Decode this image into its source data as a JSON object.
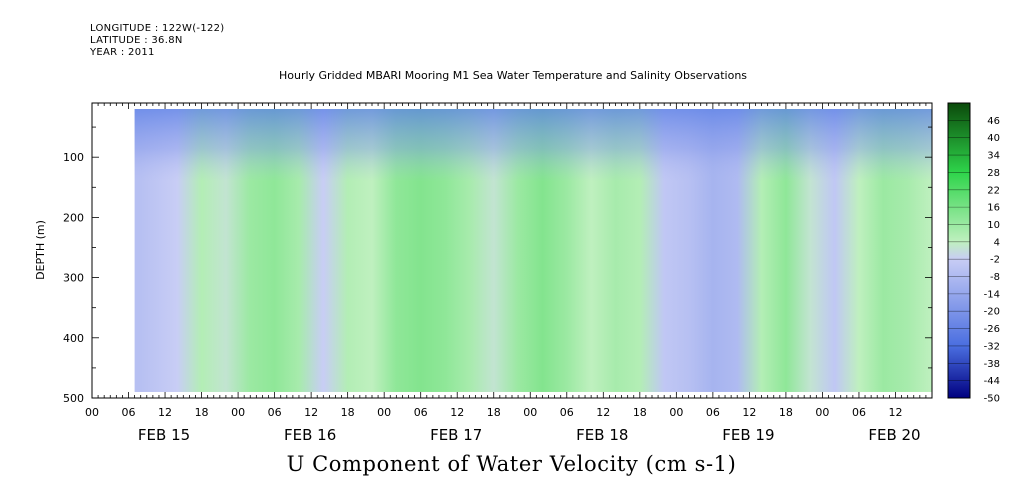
{
  "header": {
    "longitude": "LONGITUDE : 122W(-122)",
    "latitude": "LATITUDE : 36.8N",
    "year": "YEAR : 2011"
  },
  "title": "Hourly Gridded MBARI Mooring M1 Sea Water Temperature and Salinity Observations",
  "footer_title": "U Component of Water Velocity (cm s-1)",
  "chart_data": {
    "type": "heatmap",
    "title": "Hourly Gridded MBARI Mooring M1 Sea Water Temperature and Salinity Observations",
    "xlabel": "",
    "ylabel": "DEPTH (m)",
    "colorbar_label": "U Component of Water Velocity (cm s-1)",
    "x_range_hours_since_feb15_00": [
      0,
      138
    ],
    "x_ticks_hour_labels": [
      "00",
      "06",
      "12",
      "18",
      "00",
      "06",
      "12",
      "18",
      "00",
      "06",
      "12",
      "18",
      "00",
      "06",
      "12",
      "18",
      "00",
      "06",
      "12",
      "18",
      "00",
      "06",
      "12"
    ],
    "x_date_labels": [
      "FEB 15",
      "FEB 16",
      "FEB 17",
      "FEB 18",
      "FEB 19",
      "FEB 20"
    ],
    "y_range": [
      500,
      10
    ],
    "y_ticks": [
      100,
      200,
      300,
      400,
      500
    ],
    "colorbar_ticks": [
      46,
      40,
      34,
      28,
      22,
      16,
      10,
      4,
      -2,
      -8,
      -14,
      -20,
      -26,
      -32,
      -38,
      -44,
      -50
    ],
    "colorbar_range": [
      -50,
      52
    ],
    "data_x_range": [
      7,
      138
    ],
    "data_depth_range": [
      20,
      490
    ],
    "column_mean_velocity": [
      {
        "x": 8,
        "v": -6
      },
      {
        "x": 14,
        "v": -2
      },
      {
        "x": 18,
        "v": 6
      },
      {
        "x": 22,
        "v": 2
      },
      {
        "x": 26,
        "v": 10
      },
      {
        "x": 30,
        "v": 12
      },
      {
        "x": 34,
        "v": 8
      },
      {
        "x": 38,
        "v": -2
      },
      {
        "x": 42,
        "v": 6
      },
      {
        "x": 46,
        "v": 4
      },
      {
        "x": 50,
        "v": 12
      },
      {
        "x": 54,
        "v": 14
      },
      {
        "x": 58,
        "v": 12
      },
      {
        "x": 62,
        "v": 8
      },
      {
        "x": 66,
        "v": 2
      },
      {
        "x": 70,
        "v": 10
      },
      {
        "x": 74,
        "v": 14
      },
      {
        "x": 78,
        "v": 10
      },
      {
        "x": 82,
        "v": 4
      },
      {
        "x": 86,
        "v": 8
      },
      {
        "x": 90,
        "v": 6
      },
      {
        "x": 94,
        "v": -4
      },
      {
        "x": 98,
        "v": -6
      },
      {
        "x": 102,
        "v": -10
      },
      {
        "x": 106,
        "v": -8
      },
      {
        "x": 110,
        "v": 6
      },
      {
        "x": 114,
        "v": 12
      },
      {
        "x": 118,
        "v": 2
      },
      {
        "x": 122,
        "v": -4
      },
      {
        "x": 126,
        "v": 4
      },
      {
        "x": 130,
        "v": 10
      },
      {
        "x": 134,
        "v": 8
      },
      {
        "x": 138,
        "v": 4
      }
    ]
  },
  "colors": {
    "palette_low": "#000080",
    "palette_mid_blue": "#4a6ee0",
    "palette_pale_blue": "#c8cdf5",
    "palette_pale_green": "#bff0bf",
    "palette_mid_green": "#2ed44a",
    "palette_high": "#0b4a0b"
  }
}
